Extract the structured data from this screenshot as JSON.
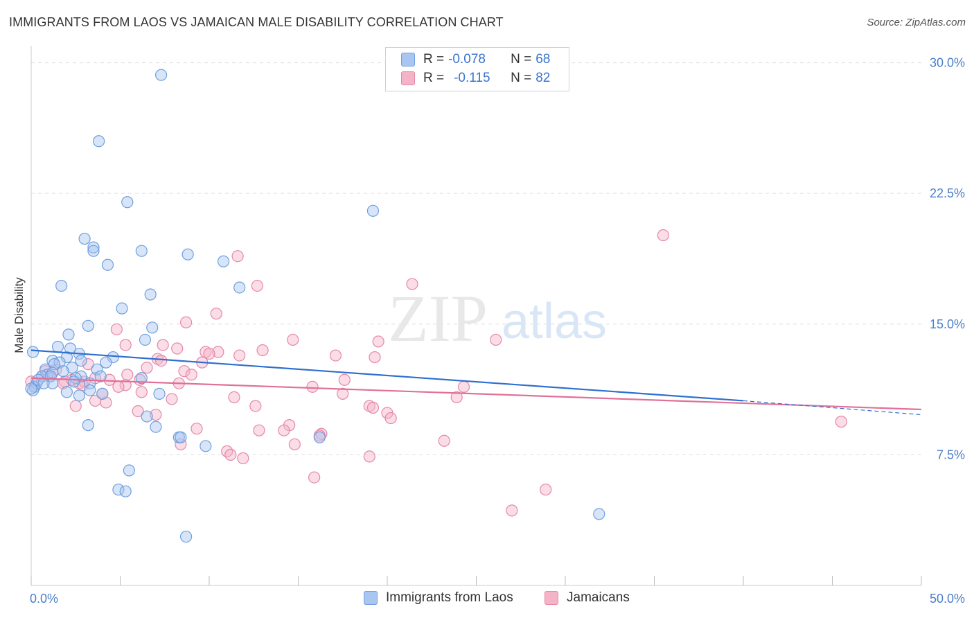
{
  "header": {
    "title": "IMMIGRANTS FROM LAOS VS JAMAICAN MALE DISABILITY CORRELATION CHART",
    "source": "Source: ZipAtlas.com"
  },
  "watermark": {
    "zip": "ZIP",
    "atlas": "atlas"
  },
  "legend": {
    "rows": [
      {
        "r_label": "R = ",
        "r_value": "-0.078",
        "n_label": "N = ",
        "n_value": "68",
        "color": "#a8c6f0"
      },
      {
        "r_label": "R = ",
        "r_value": "-0.115",
        "n_label": "N = ",
        "n_value": "82",
        "color": "#f5b3c8"
      }
    ]
  },
  "bottom_legend": [
    {
      "label": "Immigrants from Laos",
      "color": "#a8c6f0"
    },
    {
      "label": "Jamaicans",
      "color": "#f5b3c8"
    }
  ],
  "colors": {
    "laos_fill": "#a8c6f0",
    "laos_stroke": "#6e9fe0",
    "laos_line": "#2e6fd0",
    "jam_fill": "#f5b3c8",
    "jam_stroke": "#e687a6",
    "jam_line": "#e0709a",
    "grid": "#dddddd",
    "axis_text": "#4a7fc9"
  },
  "chart_data": {
    "type": "scatter",
    "title": "IMMIGRANTS FROM LAOS VS JAMAICAN MALE DISABILITY CORRELATION CHART",
    "xlabel": "",
    "ylabel": "Male Disability",
    "xlim": [
      0,
      50
    ],
    "ylim": [
      0,
      30.5
    ],
    "x_tick_labels": [
      "0.0%",
      "50.0%"
    ],
    "y_ticks": [
      7.5,
      15.0,
      22.5,
      30.0
    ],
    "y_tick_labels": [
      "7.5%",
      "15.0%",
      "22.5%",
      "30.0%"
    ],
    "grid": true,
    "legend_position": "top-center",
    "series": [
      {
        "name": "Immigrants from Laos",
        "r": -0.078,
        "n": 68,
        "trend": {
          "x": [
            0,
            40
          ],
          "y": [
            13.5,
            10.6
          ]
        },
        "trend_dashed": {
          "x": [
            40,
            50
          ],
          "y": [
            10.6,
            9.8
          ]
        },
        "points": [
          [
            7.3,
            29.3
          ],
          [
            3.8,
            25.5
          ],
          [
            5.4,
            22.0
          ],
          [
            19.2,
            21.5
          ],
          [
            3.0,
            19.9
          ],
          [
            3.5,
            19.4
          ],
          [
            3.5,
            19.2
          ],
          [
            6.2,
            19.2
          ],
          [
            8.8,
            19.0
          ],
          [
            10.8,
            18.6
          ],
          [
            4.3,
            18.4
          ],
          [
            1.7,
            17.2
          ],
          [
            11.7,
            17.1
          ],
          [
            6.7,
            16.7
          ],
          [
            5.1,
            15.9
          ],
          [
            3.2,
            14.9
          ],
          [
            6.8,
            14.8
          ],
          [
            2.1,
            14.4
          ],
          [
            6.4,
            14.1
          ],
          [
            1.5,
            13.7
          ],
          [
            2.2,
            13.6
          ],
          [
            0.1,
            13.4
          ],
          [
            2.7,
            13.3
          ],
          [
            2.0,
            13.1
          ],
          [
            1.2,
            12.9
          ],
          [
            4.6,
            13.1
          ],
          [
            2.8,
            12.9
          ],
          [
            1.6,
            12.8
          ],
          [
            1.3,
            12.7
          ],
          [
            4.2,
            12.8
          ],
          [
            2.3,
            12.5
          ],
          [
            0.8,
            12.4
          ],
          [
            3.7,
            12.4
          ],
          [
            0.9,
            12.1
          ],
          [
            1.2,
            12.2
          ],
          [
            0.6,
            12.0
          ],
          [
            1.1,
            12.0
          ],
          [
            2.8,
            12.0
          ],
          [
            3.9,
            12.0
          ],
          [
            6.2,
            11.9
          ],
          [
            2.5,
            11.9
          ],
          [
            0.3,
            11.6
          ],
          [
            1.2,
            11.6
          ],
          [
            3.3,
            11.6
          ],
          [
            2.0,
            11.1
          ],
          [
            4.0,
            11.0
          ],
          [
            7.2,
            11.0
          ],
          [
            0.2,
            11.4
          ],
          [
            0.1,
            11.2
          ],
          [
            0.0,
            11.3
          ],
          [
            3.3,
            11.2
          ],
          [
            2.7,
            10.9
          ],
          [
            6.5,
            9.7
          ],
          [
            3.2,
            9.2
          ],
          [
            7.0,
            9.1
          ],
          [
            8.3,
            8.5
          ],
          [
            8.4,
            8.5
          ],
          [
            16.2,
            8.5
          ],
          [
            9.8,
            8.0
          ],
          [
            5.5,
            6.6
          ],
          [
            4.9,
            5.5
          ],
          [
            5.3,
            5.4
          ],
          [
            31.9,
            4.1
          ],
          [
            8.7,
            2.8
          ],
          [
            0.4,
            11.8
          ],
          [
            1.8,
            12.3
          ],
          [
            2.4,
            11.7
          ],
          [
            0.7,
            11.6
          ]
        ]
      },
      {
        "name": "Jamaicans",
        "r": -0.115,
        "n": 82,
        "trend": {
          "x": [
            0,
            50
          ],
          "y": [
            11.9,
            10.1
          ]
        },
        "points": [
          [
            35.5,
            20.1
          ],
          [
            11.6,
            18.9
          ],
          [
            12.7,
            17.2
          ],
          [
            21.4,
            17.3
          ],
          [
            10.4,
            15.6
          ],
          [
            8.7,
            15.1
          ],
          [
            4.8,
            14.7
          ],
          [
            14.7,
            14.1
          ],
          [
            26.1,
            14.1
          ],
          [
            19.5,
            14.0
          ],
          [
            7.4,
            13.8
          ],
          [
            5.3,
            13.8
          ],
          [
            8.2,
            13.6
          ],
          [
            13.0,
            13.5
          ],
          [
            9.8,
            13.4
          ],
          [
            10.5,
            13.4
          ],
          [
            10.0,
            13.3
          ],
          [
            11.7,
            13.2
          ],
          [
            17.1,
            13.2
          ],
          [
            19.3,
            13.1
          ],
          [
            7.1,
            13.0
          ],
          [
            7.3,
            12.9
          ],
          [
            9.6,
            12.8
          ],
          [
            3.2,
            12.7
          ],
          [
            6.5,
            12.5
          ],
          [
            8.6,
            12.3
          ],
          [
            0.8,
            12.3
          ],
          [
            1.4,
            12.4
          ],
          [
            5.4,
            12.1
          ],
          [
            9.0,
            12.1
          ],
          [
            1.0,
            12.0
          ],
          [
            0.6,
            12.0
          ],
          [
            17.6,
            11.8
          ],
          [
            6.1,
            11.8
          ],
          [
            4.4,
            11.8
          ],
          [
            8.3,
            11.6
          ],
          [
            1.9,
            11.7
          ],
          [
            2.7,
            11.6
          ],
          [
            3.0,
            11.7
          ],
          [
            2.9,
            11.5
          ],
          [
            0.2,
            11.4
          ],
          [
            5.3,
            11.5
          ],
          [
            4.9,
            11.4
          ],
          [
            15.8,
            11.4
          ],
          [
            6.2,
            11.1
          ],
          [
            1.8,
            11.6
          ],
          [
            24.3,
            11.4
          ],
          [
            17.5,
            11.0
          ],
          [
            4.0,
            11.0
          ],
          [
            11.4,
            10.8
          ],
          [
            7.9,
            10.7
          ],
          [
            23.9,
            10.8
          ],
          [
            3.6,
            10.6
          ],
          [
            4.2,
            10.5
          ],
          [
            2.5,
            10.3
          ],
          [
            12.6,
            10.3
          ],
          [
            19.0,
            10.3
          ],
          [
            19.2,
            10.2
          ],
          [
            6.0,
            10.0
          ],
          [
            20.0,
            9.9
          ],
          [
            7.0,
            9.8
          ],
          [
            20.2,
            9.6
          ],
          [
            45.5,
            9.4
          ],
          [
            14.5,
            9.2
          ],
          [
            14.2,
            8.9
          ],
          [
            12.8,
            8.9
          ],
          [
            9.3,
            9.0
          ],
          [
            16.3,
            8.7
          ],
          [
            16.2,
            8.6
          ],
          [
            23.2,
            8.3
          ],
          [
            14.8,
            8.1
          ],
          [
            8.4,
            8.1
          ],
          [
            11.0,
            7.7
          ],
          [
            11.2,
            7.5
          ],
          [
            19.0,
            7.4
          ],
          [
            11.9,
            7.3
          ],
          [
            15.9,
            6.2
          ],
          [
            28.9,
            5.5
          ],
          [
            27.0,
            4.3
          ],
          [
            0.0,
            11.7
          ],
          [
            3.6,
            11.9
          ],
          [
            2.3,
            11.8
          ]
        ]
      }
    ]
  }
}
